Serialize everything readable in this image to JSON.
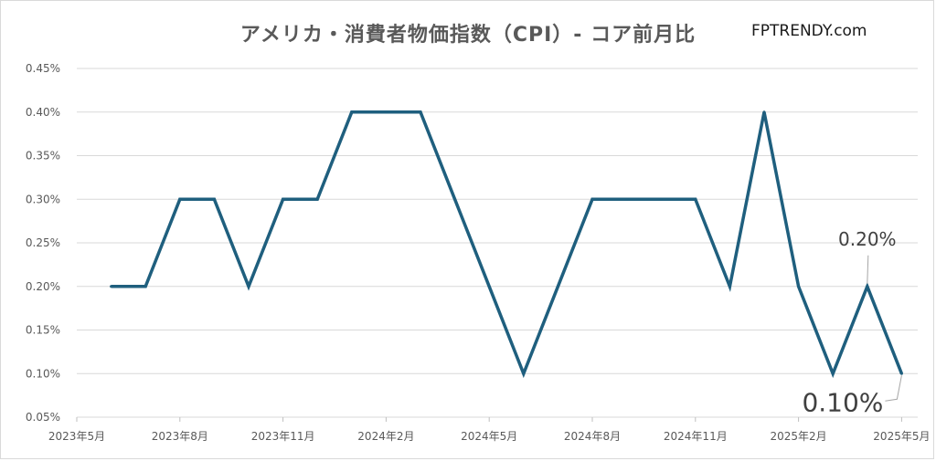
{
  "chart_data": {
    "type": "line",
    "title": "アメリカ・消費者物価指数（CPI）- コア前月比",
    "brand": "FPTRENDY.com",
    "y_ticks": [
      "0.05%",
      "0.10%",
      "0.15%",
      "0.20%",
      "0.25%",
      "0.30%",
      "0.35%",
      "0.40%",
      "0.45%"
    ],
    "ylim": [
      0.05,
      0.45
    ],
    "x_ticks": [
      "2023年5月",
      "2023年8月",
      "2023年11月",
      "2024年2月",
      "2024年5月",
      "2024年8月",
      "2024年11月",
      "2025年2月",
      "2025年5月"
    ],
    "grid": true,
    "line_color": "#1f5f7e",
    "series": [
      {
        "x": [
          "2023-06",
          "2023-07",
          "2023-08",
          "2023-09",
          "2023-10",
          "2023-11",
          "2023-12",
          "2024-01",
          "2024-02",
          "2024-03",
          "2024-04",
          "2024-05",
          "2024-06",
          "2024-07",
          "2024-08",
          "2024-09",
          "2024-10",
          "2024-11",
          "2024-12",
          "2025-01",
          "2025-02",
          "2025-03",
          "2025-04",
          "2025-05"
        ],
        "values": [
          0.2,
          0.2,
          0.3,
          0.3,
          0.2,
          0.3,
          0.3,
          0.4,
          0.4,
          0.4,
          0.3,
          0.2,
          0.1,
          0.2,
          0.3,
          0.3,
          0.3,
          0.3,
          0.2,
          0.4,
          0.2,
          0.1,
          0.2,
          0.1
        ]
      }
    ],
    "annotations": [
      {
        "text": "0.20%",
        "point_index": 22,
        "size": "small"
      },
      {
        "text": "0.10%",
        "point_index": 23,
        "size": "large"
      }
    ]
  }
}
